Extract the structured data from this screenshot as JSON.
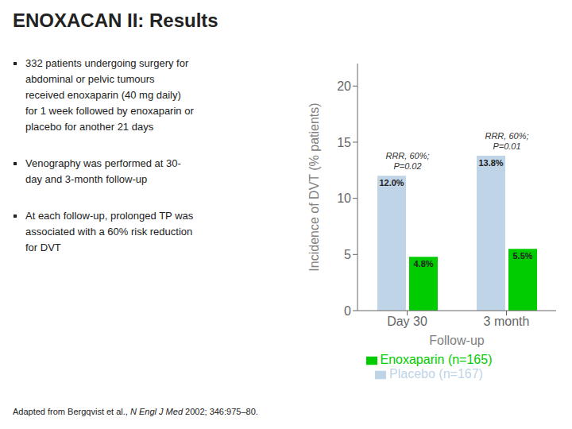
{
  "chart_data": {
    "type": "bar",
    "title": "ENOXACAN II: Results",
    "bullets": [
      "332 patients undergoing surgery for\nabdominal or pelvic tumours\nreceived enoxaparin (40 mg daily)\nfor 1 week followed by enoxaparin or\nplacebo for another 21 days",
      "Venography was performed at 30-\nday and 3-month follow-up",
      "At each follow-up, prolonged TP was\nassociated with a 60% risk reduction\nfor DVT"
    ],
    "footnote": [
      "Adapted from Bergqvist et al., ",
      "N Engl J Med",
      " 2002; 346:975–80."
    ],
    "categories": [
      "Day 30",
      "3 month"
    ],
    "xlabel": "Follow-up",
    "ylabel": "Incidence of DVT (% patients)",
    "ylim": [
      0,
      22
    ],
    "yticks": [
      0,
      5,
      10,
      15,
      20
    ],
    "grid": false,
    "legend": "bottom",
    "data_labels": true,
    "series": [
      {
        "name": "Placebo (n=167)",
        "color": "#c0d4e8",
        "values": [
          12.0,
          13.8
        ],
        "value_labels": [
          "12.0%",
          "13.8%"
        ]
      },
      {
        "name": "Enoxaparin (n=165)",
        "color": "#00cc00",
        "values": [
          4.8,
          5.5
        ],
        "value_labels": [
          "4.8%",
          "5.5%"
        ]
      }
    ],
    "annotations": [
      "RRR, 60%;\nP=0.02",
      "RRR, 60%;\nP=0.01"
    ]
  }
}
